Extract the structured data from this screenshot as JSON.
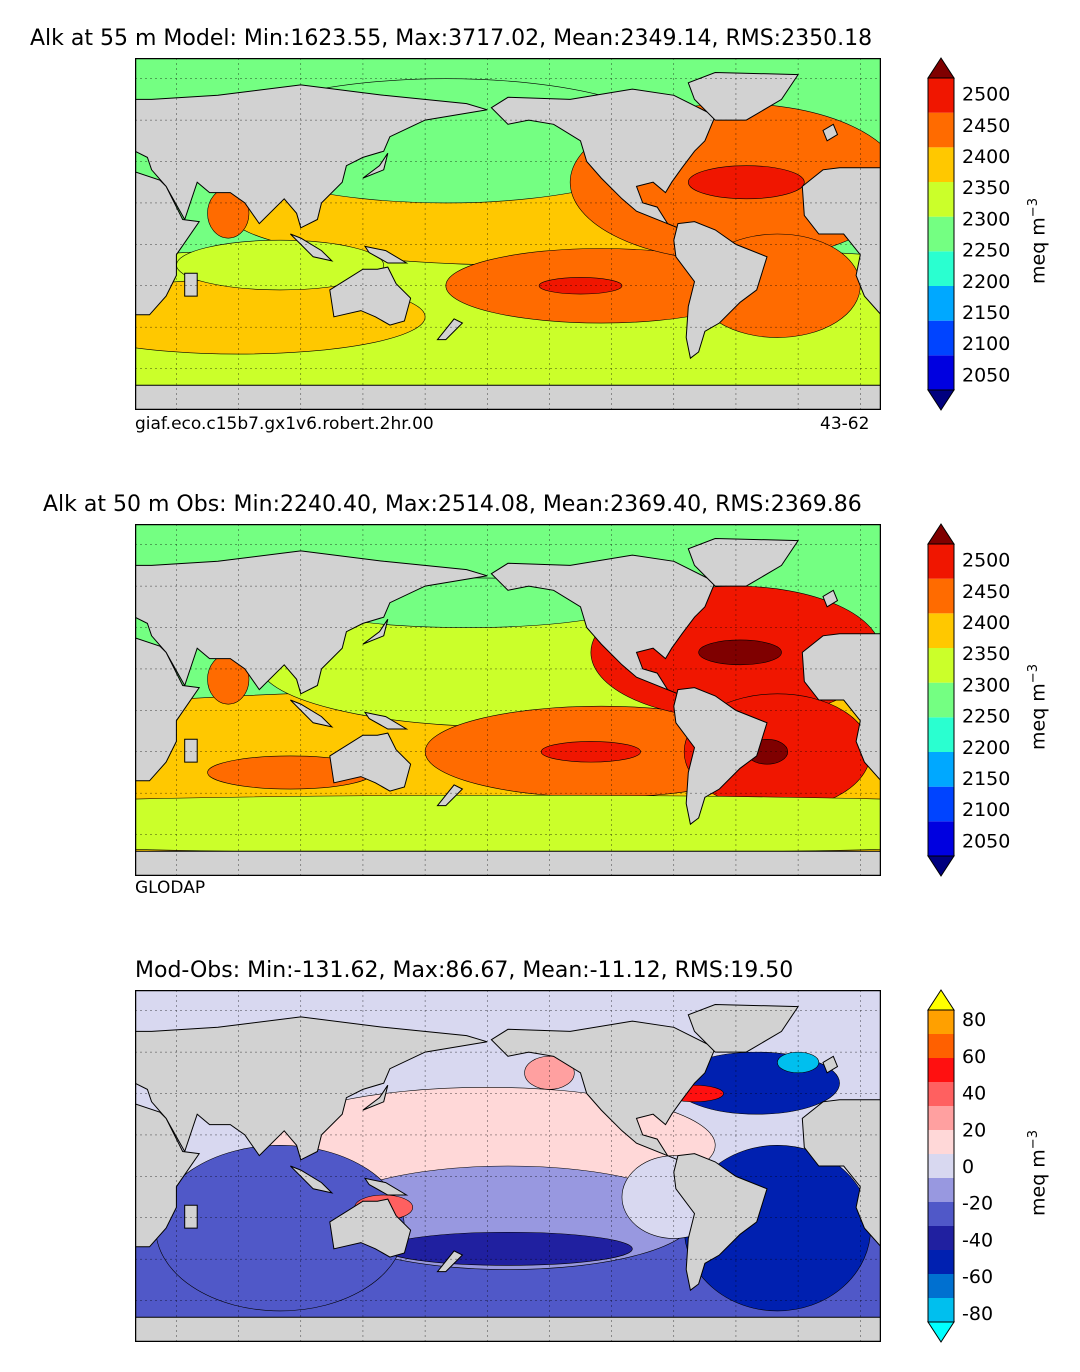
{
  "chart_data": [
    {
      "type": "heatmap",
      "title": "Alk at 55 m Model: Min:1623.55, Max:3717.02, Mean:2349.14, RMS:2350.18",
      "footer_left": "giaf.eco.c15b7.gx1v6.robert.2hr.00",
      "footer_right": "43-62",
      "colorbar_label": "meq m",
      "colorbar_label_sup": "−3",
      "colorbar_ticks": [
        2050,
        2100,
        2150,
        2200,
        2250,
        2300,
        2350,
        2400,
        2450,
        2500
      ],
      "colorbar_range": [
        2025,
        2525
      ],
      "colors": [
        "#00007f",
        "#0000e0",
        "#0044ff",
        "#00a8ff",
        "#2affd0",
        "#74ff82",
        "#cbff2a",
        "#ffc800",
        "#ff6b00",
        "#f01600",
        "#7f0000"
      ],
      "field": [
        {
          "lat": 50,
          "lon": 170,
          "value": 2240
        },
        {
          "lat": 30,
          "lon": 200,
          "value": 2350
        },
        {
          "lat": -20,
          "lon": 240,
          "value": 2410
        },
        {
          "lat": 28,
          "lon": 310,
          "value": 2420
        },
        {
          "lat": -20,
          "lon": 335,
          "value": 2420
        },
        {
          "lat": 15,
          "lon": 65,
          "value": 2400
        },
        {
          "lat": -50,
          "lon": 180,
          "value": 2300
        }
      ]
    },
    {
      "type": "heatmap",
      "title": "Alk at 50 m Obs: Min:2240.40, Max:2514.08, Mean:2369.40, RMS:2369.86",
      "footer_left": "GLODAP",
      "footer_right": "",
      "colorbar_label": "meq m",
      "colorbar_label_sup": "−3",
      "colorbar_ticks": [
        2050,
        2100,
        2150,
        2200,
        2250,
        2300,
        2350,
        2400,
        2450,
        2500
      ],
      "colorbar_range": [
        2025,
        2525
      ],
      "colors": [
        "#00007f",
        "#0000e0",
        "#0044ff",
        "#00a8ff",
        "#2affd0",
        "#74ff82",
        "#cbff2a",
        "#ffc800",
        "#ff6b00",
        "#f01600",
        "#7f0000"
      ],
      "field": [
        {
          "lat": 50,
          "lon": 190,
          "value": 2260
        },
        {
          "lat": 25,
          "lon": 200,
          "value": 2360
        },
        {
          "lat": -20,
          "lon": 245,
          "value": 2430
        },
        {
          "lat": 28,
          "lon": 310,
          "value": 2480
        },
        {
          "lat": -20,
          "lon": 330,
          "value": 2470
        },
        {
          "lat": -30,
          "lon": 95,
          "value": 2410
        },
        {
          "lat": -50,
          "lon": 180,
          "value": 2330
        }
      ]
    },
    {
      "type": "heatmap",
      "title": "Mod-Obs: Min:-131.62, Max:86.67, Mean:-11.12, RMS:19.50",
      "footer_left": "",
      "footer_right": "",
      "colorbar_label": "meq m",
      "colorbar_label_sup": "−3",
      "colorbar_ticks": [
        -80,
        -60,
        -40,
        -20,
        0,
        20,
        40,
        60,
        80
      ],
      "colorbar_range": [
        -85,
        85
      ],
      "colors": [
        "#00ffff",
        "#00bfee",
        "#0070d0",
        "#0020b0",
        "#2020a0",
        "#5058c8",
        "#9898e0",
        "#d8d8f0",
        "#ffd8d8",
        "#ffa0a0",
        "#ff6060",
        "#ff1010",
        "#ff6000",
        "#ffa000",
        "#ffff00"
      ],
      "field": [
        {
          "lat": 20,
          "lon": 190,
          "value": 10
        },
        {
          "lat": -40,
          "lon": 200,
          "value": -30
        },
        {
          "lat": 45,
          "lon": 320,
          "value": -60
        },
        {
          "lat": 40,
          "lon": 290,
          "value": 50
        },
        {
          "lat": -30,
          "lon": 335,
          "value": -40
        },
        {
          "lat": -20,
          "lon": 80,
          "value": -25
        },
        {
          "lat": 10,
          "lon": 150,
          "value": 15
        }
      ]
    }
  ]
}
